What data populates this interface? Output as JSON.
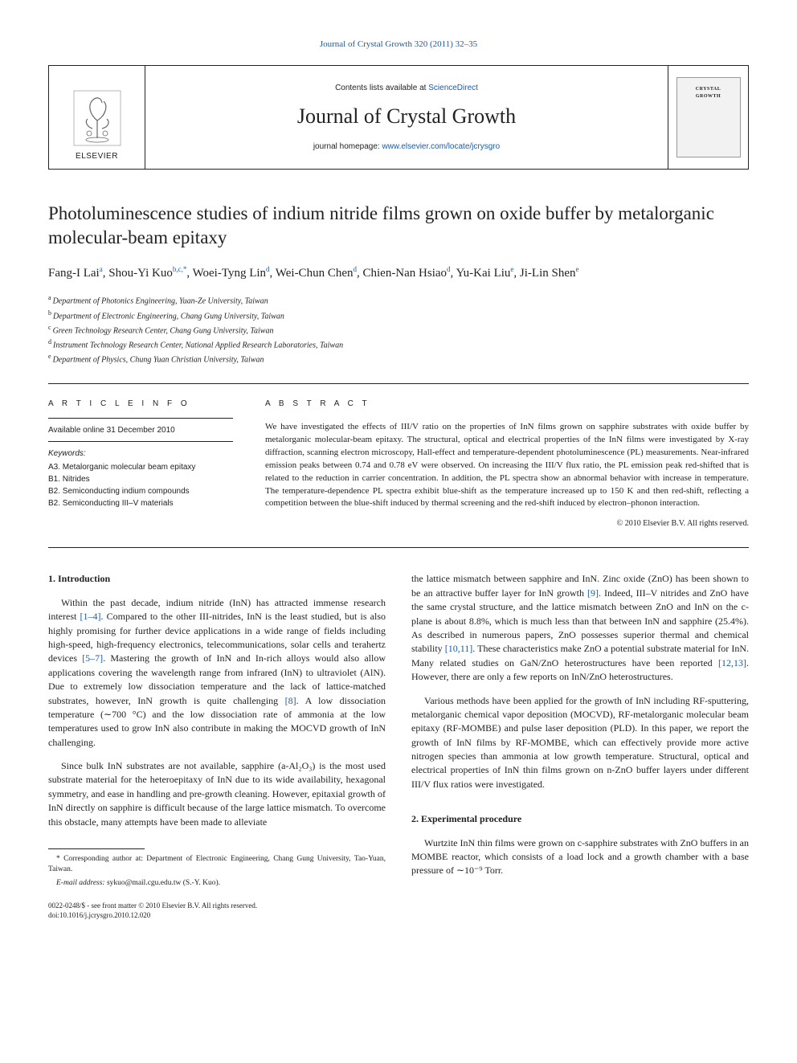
{
  "top_link": "Journal of Crystal Growth 320 (2011) 32–35",
  "masthead": {
    "contents_prefix": "Contents lists available at ",
    "contents_link": "ScienceDirect",
    "journal_name": "Journal of Crystal Growth",
    "homepage_prefix": "journal homepage: ",
    "homepage_link": "www.elsevier.com/locate/jcrysgro",
    "publisher": "ELSEVIER",
    "cover_label1": "CRYSTAL",
    "cover_label2": "GROWTH"
  },
  "article": {
    "title": "Photoluminescence studies of indium nitride films grown on oxide buffer by metalorganic molecular-beam epitaxy",
    "authors_html_parts": [
      {
        "name": "Fang-I Lai",
        "sup": "a"
      },
      {
        "name": "Shou-Yi Kuo",
        "sup": "b,c,*"
      },
      {
        "name": "Woei-Tyng Lin",
        "sup": "d"
      },
      {
        "name": "Wei-Chun Chen",
        "sup": "d"
      },
      {
        "name": "Chien-Nan Hsiao",
        "sup": "d"
      },
      {
        "name": "Yu-Kai Liu",
        "sup": "e"
      },
      {
        "name": "Ji-Lin Shen",
        "sup": "e"
      }
    ],
    "affiliations": [
      {
        "sup": "a",
        "text": "Department of Photonics Engineering, Yuan-Ze University, Taiwan"
      },
      {
        "sup": "b",
        "text": "Department of Electronic Engineering, Chang Gung University, Taiwan"
      },
      {
        "sup": "c",
        "text": "Green Technology Research Center, Chang Gung University, Taiwan"
      },
      {
        "sup": "d",
        "text": "Instrument Technology Research Center, National Applied Research Laboratories, Taiwan"
      },
      {
        "sup": "e",
        "text": "Department of Physics, Chung Yuan Christian University, Taiwan"
      }
    ]
  },
  "meta": {
    "article_info_label": "A R T I C L E  I N F O",
    "available": "Available online 31 December 2010",
    "keywords_label": "Keywords:",
    "keywords": [
      "A3. Metalorganic molecular beam epitaxy",
      "B1. Nitrides",
      "B2. Semiconducting indium compounds",
      "B2. Semiconducting III–V materials"
    ]
  },
  "abstract": {
    "label": "A B S T R A C T",
    "text": "We have investigated the effects of III/V ratio on the properties of InN films grown on sapphire substrates with oxide buffer by metalorganic molecular-beam epitaxy. The structural, optical and electrical properties of the InN films were investigated by X-ray diffraction, scanning electron microscopy, Hall-effect and temperature-dependent photoluminescence (PL) measurements. Near-infrared emission peaks between 0.74 and 0.78 eV were observed. On increasing the III/V flux ratio, the PL emission peak red-shifted that is related to the reduction in carrier concentration. In addition, the PL spectra show an abnormal behavior with increase in temperature. The temperature-dependence PL spectra exhibit blue-shift as the temperature increased up to 150 K and then red-shift, reflecting a competition between the blue-shift induced by thermal screening and the red-shift induced by electron–phonon interaction.",
    "copyright": "© 2010 Elsevier B.V. All rights reserved."
  },
  "body": {
    "left": {
      "sec1_head": "1.  Introduction",
      "p1_a": "Within the past decade, indium nitride (InN) has attracted immense research interest ",
      "p1_ref1": "[1–4]",
      "p1_b": ". Compared to the other III-nitrides, InN is the least studied, but is also highly promising for further device applications in a wide range of fields including high-speed, high-frequency electronics, telecommunications, solar cells and terahertz devices ",
      "p1_ref2": "[5–7]",
      "p1_c": ". Mastering the growth of InN and In-rich alloys would also allow applications covering the wavelength range from infrared (InN) to ultraviolet (AlN). Due to extremely low dissociation temperature and the lack of lattice-matched substrates, however, InN growth is quite challenging ",
      "p1_ref3": "[8]",
      "p1_d": ". A low dissociation temperature (∼700 °C) and the low dissociation rate of ammonia at the low temperatures used to grow InN also contribute in making the MOCVD growth of InN challenging.",
      "p2": "Since bulk InN substrates are not available, sapphire (a-Al₂O₃) is the most used substrate material for the heteroepitaxy of InN due to its wide availability, hexagonal symmetry, and ease in handling and pre-growth cleaning. However, epitaxial growth of InN directly on sapphire is difficult because of the large lattice mismatch. To overcome this obstacle, many attempts have been made to alleviate"
    },
    "right": {
      "p1_a": "the lattice mismatch between sapphire and InN. Zinc oxide (ZnO) has been shown to be an attractive buffer layer for InN growth ",
      "p1_ref1": "[9]",
      "p1_b": ". Indeed, III–V nitrides and ZnO have the same crystal structure, and the lattice mismatch between ZnO and InN on the c-plane is about 8.8%, which is much less than that between InN and sapphire (25.4%). As described in numerous papers, ZnO possesses superior thermal and chemical stability ",
      "p1_ref2": "[10,11]",
      "p1_c": ". These characteristics make ZnO a potential substrate material for InN. Many related studies on GaN/ZnO heterostructures have been reported ",
      "p1_ref3": "[12,13]",
      "p1_d": ". However, there are only a few reports on InN/ZnO heterostructures.",
      "p2": "Various methods have been applied for the growth of InN including RF-sputtering, metalorganic chemical vapor deposition (MOCVD), RF-metalorganic molecular beam epitaxy (RF-MOMBE) and pulse laser deposition (PLD). In this paper, we report the growth of InN films by RF-MOMBE, which can effectively provide more active nitrogen species than ammonia at low growth temperature. Structural, optical and electrical properties of InN thin films grown on n-ZnO buffer layers under different III/V flux ratios were investigated.",
      "sec2_head": "2.  Experimental procedure",
      "p3": "Wurtzite InN thin films were grown on c-sapphire substrates with ZnO buffers in an MOMBE reactor, which consists of a load lock and a growth chamber with a base pressure of ∼10⁻⁹ Torr."
    }
  },
  "footnotes": {
    "corr": "* Corresponding author at: Department of Electronic Engineering, Chang Gung University, Tao-Yuan, Taiwan.",
    "email_label": "E-mail address: ",
    "email": "sykuo@mail.cgu.edu.tw (S.-Y. Kuo)."
  },
  "footer": {
    "line1": "0022-0248/$ - see front matter © 2010 Elsevier B.V. All rights reserved.",
    "line2": "doi:10.1016/j.jcrysgro.2010.12.020"
  },
  "colors": {
    "link": "#1a5ca8",
    "text": "#222222",
    "rule": "#222222"
  }
}
